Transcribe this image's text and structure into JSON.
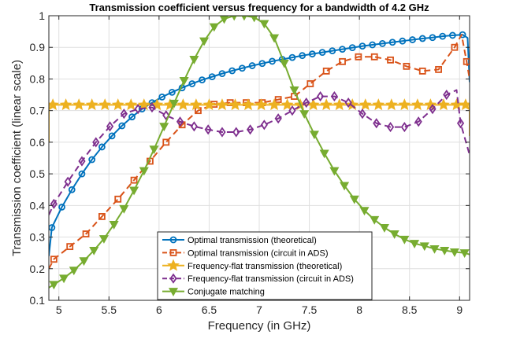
{
  "chart_data": {
    "type": "line",
    "title": "Transmission coefficient versus frequency for a bandwidth of 4.2 GHz",
    "xlabel": "Frequency (in GHz)",
    "ylabel": "Transmission coefficient (linear scale)",
    "xlim": [
      4.9,
      9.1
    ],
    "ylim": [
      0.1,
      1.0
    ],
    "xticks": [
      5,
      5.5,
      6,
      6.5,
      7,
      7.5,
      8,
      8.5,
      9
    ],
    "xtick_labels": [
      "5",
      "5.5",
      "6",
      "6.5",
      "7",
      "7.5",
      "8",
      "8.5",
      "9"
    ],
    "yticks": [
      0.1,
      0.2,
      0.3,
      0.4,
      0.5,
      0.6,
      0.7,
      0.8,
      0.9,
      1
    ],
    "ytick_labels": [
      "0.1",
      "0.2",
      "0.3",
      "0.4",
      "0.5",
      "0.6",
      "0.7",
      "0.8",
      "0.9",
      "1"
    ],
    "grid": true,
    "legend_position": "bottom-center",
    "series": [
      {
        "name": "Optimal transmission (theoretical)",
        "color": "#0072BD",
        "marker": "circle",
        "dash": "solid",
        "markers_x": [
          4.93,
          5.03,
          5.13,
          5.23,
          5.33,
          5.43,
          5.53,
          5.63,
          5.73,
          5.83,
          5.93,
          6.03,
          6.13,
          6.23,
          6.33,
          6.43,
          6.53,
          6.63,
          6.73,
          6.83,
          6.93,
          7.03,
          7.13,
          7.23,
          7.33,
          7.43,
          7.53,
          7.63,
          7.73,
          7.83,
          7.93,
          8.03,
          8.13,
          8.23,
          8.33,
          8.43,
          8.53,
          8.63,
          8.73,
          8.83,
          8.93,
          9.03
        ],
        "markers_y": [
          0.33,
          0.395,
          0.45,
          0.5,
          0.545,
          0.585,
          0.62,
          0.652,
          0.68,
          0.705,
          0.725,
          0.743,
          0.758,
          0.772,
          0.785,
          0.797,
          0.807,
          0.817,
          0.826,
          0.834,
          0.842,
          0.849,
          0.856,
          0.862,
          0.868,
          0.874,
          0.879,
          0.884,
          0.889,
          0.894,
          0.899,
          0.904,
          0.908,
          0.912,
          0.916,
          0.92,
          0.924,
          0.928,
          0.931,
          0.935,
          0.938,
          0.94
        ],
        "line_x": [
          4.9,
          4.93,
          5.03,
          5.13,
          5.23,
          5.33,
          5.43,
          5.53,
          5.63,
          5.73,
          5.83,
          5.93,
          6.03,
          6.13,
          6.23,
          6.33,
          6.43,
          6.53,
          6.63,
          6.73,
          6.83,
          6.93,
          7.03,
          7.13,
          7.23,
          7.33,
          7.43,
          7.53,
          7.63,
          7.73,
          7.83,
          7.93,
          8.03,
          8.13,
          8.23,
          8.33,
          8.43,
          8.53,
          8.63,
          8.73,
          8.83,
          8.93,
          9.03,
          9.08,
          9.1
        ],
        "line_y": [
          0.24,
          0.33,
          0.395,
          0.45,
          0.5,
          0.545,
          0.585,
          0.62,
          0.652,
          0.68,
          0.705,
          0.725,
          0.743,
          0.758,
          0.772,
          0.785,
          0.797,
          0.807,
          0.817,
          0.826,
          0.834,
          0.842,
          0.849,
          0.856,
          0.862,
          0.868,
          0.874,
          0.879,
          0.884,
          0.889,
          0.894,
          0.899,
          0.904,
          0.908,
          0.912,
          0.916,
          0.92,
          0.924,
          0.928,
          0.931,
          0.935,
          0.938,
          0.94,
          0.93,
          0.79
        ]
      },
      {
        "name": "Optimal transmission (circuit in ADS)",
        "color": "#D95319",
        "marker": "square",
        "dash": "dashed",
        "markers_x": [
          4.95,
          5.11,
          5.27,
          5.43,
          5.59,
          5.75,
          5.91,
          6.07,
          6.23,
          6.39,
          6.55,
          6.71,
          6.87,
          7.03,
          7.19,
          7.35,
          7.51,
          7.67,
          7.83,
          7.99,
          8.15,
          8.31,
          8.47,
          8.63,
          8.79,
          8.95,
          9.07
        ],
        "markers_y": [
          0.23,
          0.27,
          0.31,
          0.365,
          0.42,
          0.48,
          0.54,
          0.6,
          0.655,
          0.7,
          0.72,
          0.725,
          0.725,
          0.725,
          0.735,
          0.745,
          0.785,
          0.825,
          0.855,
          0.87,
          0.87,
          0.86,
          0.84,
          0.825,
          0.83,
          0.9,
          0.855
        ],
        "line_x": [
          4.9,
          4.95,
          5.11,
          5.27,
          5.43,
          5.59,
          5.75,
          5.91,
          6.07,
          6.23,
          6.39,
          6.55,
          6.71,
          6.87,
          7.03,
          7.19,
          7.35,
          7.51,
          7.67,
          7.83,
          7.99,
          8.15,
          8.31,
          8.47,
          8.63,
          8.79,
          8.95,
          9.02,
          9.07,
          9.1
        ],
        "line_y": [
          0.2,
          0.23,
          0.27,
          0.31,
          0.365,
          0.42,
          0.48,
          0.54,
          0.6,
          0.655,
          0.7,
          0.72,
          0.725,
          0.725,
          0.725,
          0.735,
          0.745,
          0.785,
          0.825,
          0.855,
          0.87,
          0.87,
          0.86,
          0.84,
          0.825,
          0.83,
          0.9,
          0.94,
          0.855,
          0.8
        ]
      },
      {
        "name": "Frequency-flat transmission (theoretical)",
        "color": "#EDB120",
        "marker": "star",
        "dash": "solid",
        "markers_x": [
          4.94,
          5.07,
          5.2,
          5.33,
          5.46,
          5.59,
          5.72,
          5.85,
          5.98,
          6.11,
          6.24,
          6.37,
          6.5,
          6.63,
          6.76,
          6.89,
          7.02,
          7.15,
          7.28,
          7.41,
          7.54,
          7.67,
          7.8,
          7.93,
          8.06,
          8.19,
          8.32,
          8.45,
          8.58,
          8.71,
          8.84,
          8.97,
          9.06
        ],
        "markers_y": [
          0.718,
          0.718,
          0.718,
          0.718,
          0.718,
          0.718,
          0.718,
          0.718,
          0.718,
          0.718,
          0.718,
          0.718,
          0.718,
          0.718,
          0.718,
          0.718,
          0.718,
          0.718,
          0.718,
          0.718,
          0.718,
          0.718,
          0.718,
          0.718,
          0.718,
          0.718,
          0.718,
          0.718,
          0.718,
          0.718,
          0.718,
          0.718,
          0.718
        ],
        "line_x": [
          4.9,
          4.9,
          4.94,
          9.06,
          9.1,
          9.1
        ],
        "line_y": [
          0.6,
          0.718,
          0.718,
          0.718,
          0.718,
          0.62
        ]
      },
      {
        "name": "Frequency-flat transmission (circuit in ADS)",
        "color": "#7E2F8E",
        "marker": "diamond",
        "dash": "dashed",
        "markers_x": [
          4.95,
          5.09,
          5.23,
          5.37,
          5.51,
          5.65,
          5.79,
          5.93,
          6.07,
          6.21,
          6.35,
          6.49,
          6.63,
          6.77,
          6.91,
          7.05,
          7.19,
          7.33,
          7.47,
          7.61,
          7.75,
          7.89,
          8.03,
          8.17,
          8.31,
          8.45,
          8.59,
          8.73,
          8.87,
          9.01
        ],
        "markers_y": [
          0.405,
          0.475,
          0.54,
          0.6,
          0.65,
          0.69,
          0.705,
          0.71,
          0.685,
          0.665,
          0.65,
          0.64,
          0.632,
          0.632,
          0.64,
          0.655,
          0.675,
          0.7,
          0.725,
          0.745,
          0.745,
          0.725,
          0.69,
          0.66,
          0.648,
          0.648,
          0.665,
          0.705,
          0.75,
          0.66
        ],
        "line_x": [
          4.9,
          4.95,
          5.09,
          5.23,
          5.37,
          5.51,
          5.65,
          5.79,
          5.93,
          6.07,
          6.21,
          6.35,
          6.49,
          6.63,
          6.77,
          6.91,
          7.05,
          7.19,
          7.33,
          7.47,
          7.61,
          7.75,
          7.89,
          8.03,
          8.17,
          8.31,
          8.45,
          8.59,
          8.73,
          8.87,
          8.97,
          9.01,
          9.1
        ],
        "line_y": [
          0.37,
          0.405,
          0.475,
          0.54,
          0.6,
          0.65,
          0.69,
          0.705,
          0.71,
          0.685,
          0.665,
          0.65,
          0.64,
          0.632,
          0.632,
          0.64,
          0.655,
          0.675,
          0.7,
          0.725,
          0.745,
          0.745,
          0.725,
          0.69,
          0.66,
          0.648,
          0.648,
          0.665,
          0.705,
          0.75,
          0.765,
          0.66,
          0.56
        ]
      },
      {
        "name": "Conjugate matching",
        "color": "#77AC30",
        "marker": "triangle-down",
        "dash": "solid",
        "markers_x": [
          4.95,
          5.05,
          5.15,
          5.25,
          5.35,
          5.45,
          5.55,
          5.65,
          5.75,
          5.85,
          5.95,
          6.05,
          6.15,
          6.25,
          6.35,
          6.45,
          6.55,
          6.65,
          6.75,
          6.85,
          6.95,
          7.05,
          7.15,
          7.25,
          7.35,
          7.45,
          7.55,
          7.65,
          7.75,
          7.85,
          7.95,
          8.05,
          8.15,
          8.25,
          8.35,
          8.45,
          8.55,
          8.65,
          8.75,
          8.85,
          8.95,
          9.05
        ],
        "markers_y": [
          0.15,
          0.17,
          0.195,
          0.225,
          0.258,
          0.295,
          0.34,
          0.39,
          0.448,
          0.51,
          0.578,
          0.65,
          0.723,
          0.795,
          0.862,
          0.92,
          0.965,
          0.99,
          1.0,
          1.0,
          0.995,
          0.975,
          0.93,
          0.85,
          0.765,
          0.69,
          0.625,
          0.565,
          0.51,
          0.463,
          0.42,
          0.384,
          0.355,
          0.33,
          0.31,
          0.293,
          0.28,
          0.272,
          0.263,
          0.258,
          0.253,
          0.25
        ],
        "line_x": [
          4.9,
          4.95,
          5.05,
          5.15,
          5.25,
          5.35,
          5.45,
          5.55,
          5.65,
          5.75,
          5.85,
          5.95,
          6.05,
          6.15,
          6.25,
          6.35,
          6.45,
          6.55,
          6.65,
          6.75,
          6.85,
          6.95,
          7.05,
          7.15,
          7.25,
          7.35,
          7.45,
          7.55,
          7.65,
          7.75,
          7.85,
          7.95,
          8.05,
          8.15,
          8.25,
          8.35,
          8.45,
          8.55,
          8.65,
          8.75,
          8.85,
          8.95,
          9.05,
          9.1
        ],
        "line_y": [
          0.14,
          0.15,
          0.17,
          0.195,
          0.225,
          0.258,
          0.295,
          0.34,
          0.39,
          0.448,
          0.51,
          0.578,
          0.65,
          0.723,
          0.795,
          0.862,
          0.92,
          0.965,
          0.99,
          1.0,
          1.0,
          0.995,
          0.975,
          0.93,
          0.85,
          0.765,
          0.69,
          0.625,
          0.565,
          0.51,
          0.463,
          0.42,
          0.384,
          0.355,
          0.33,
          0.31,
          0.293,
          0.28,
          0.272,
          0.263,
          0.258,
          0.253,
          0.25,
          0.245
        ]
      }
    ]
  }
}
